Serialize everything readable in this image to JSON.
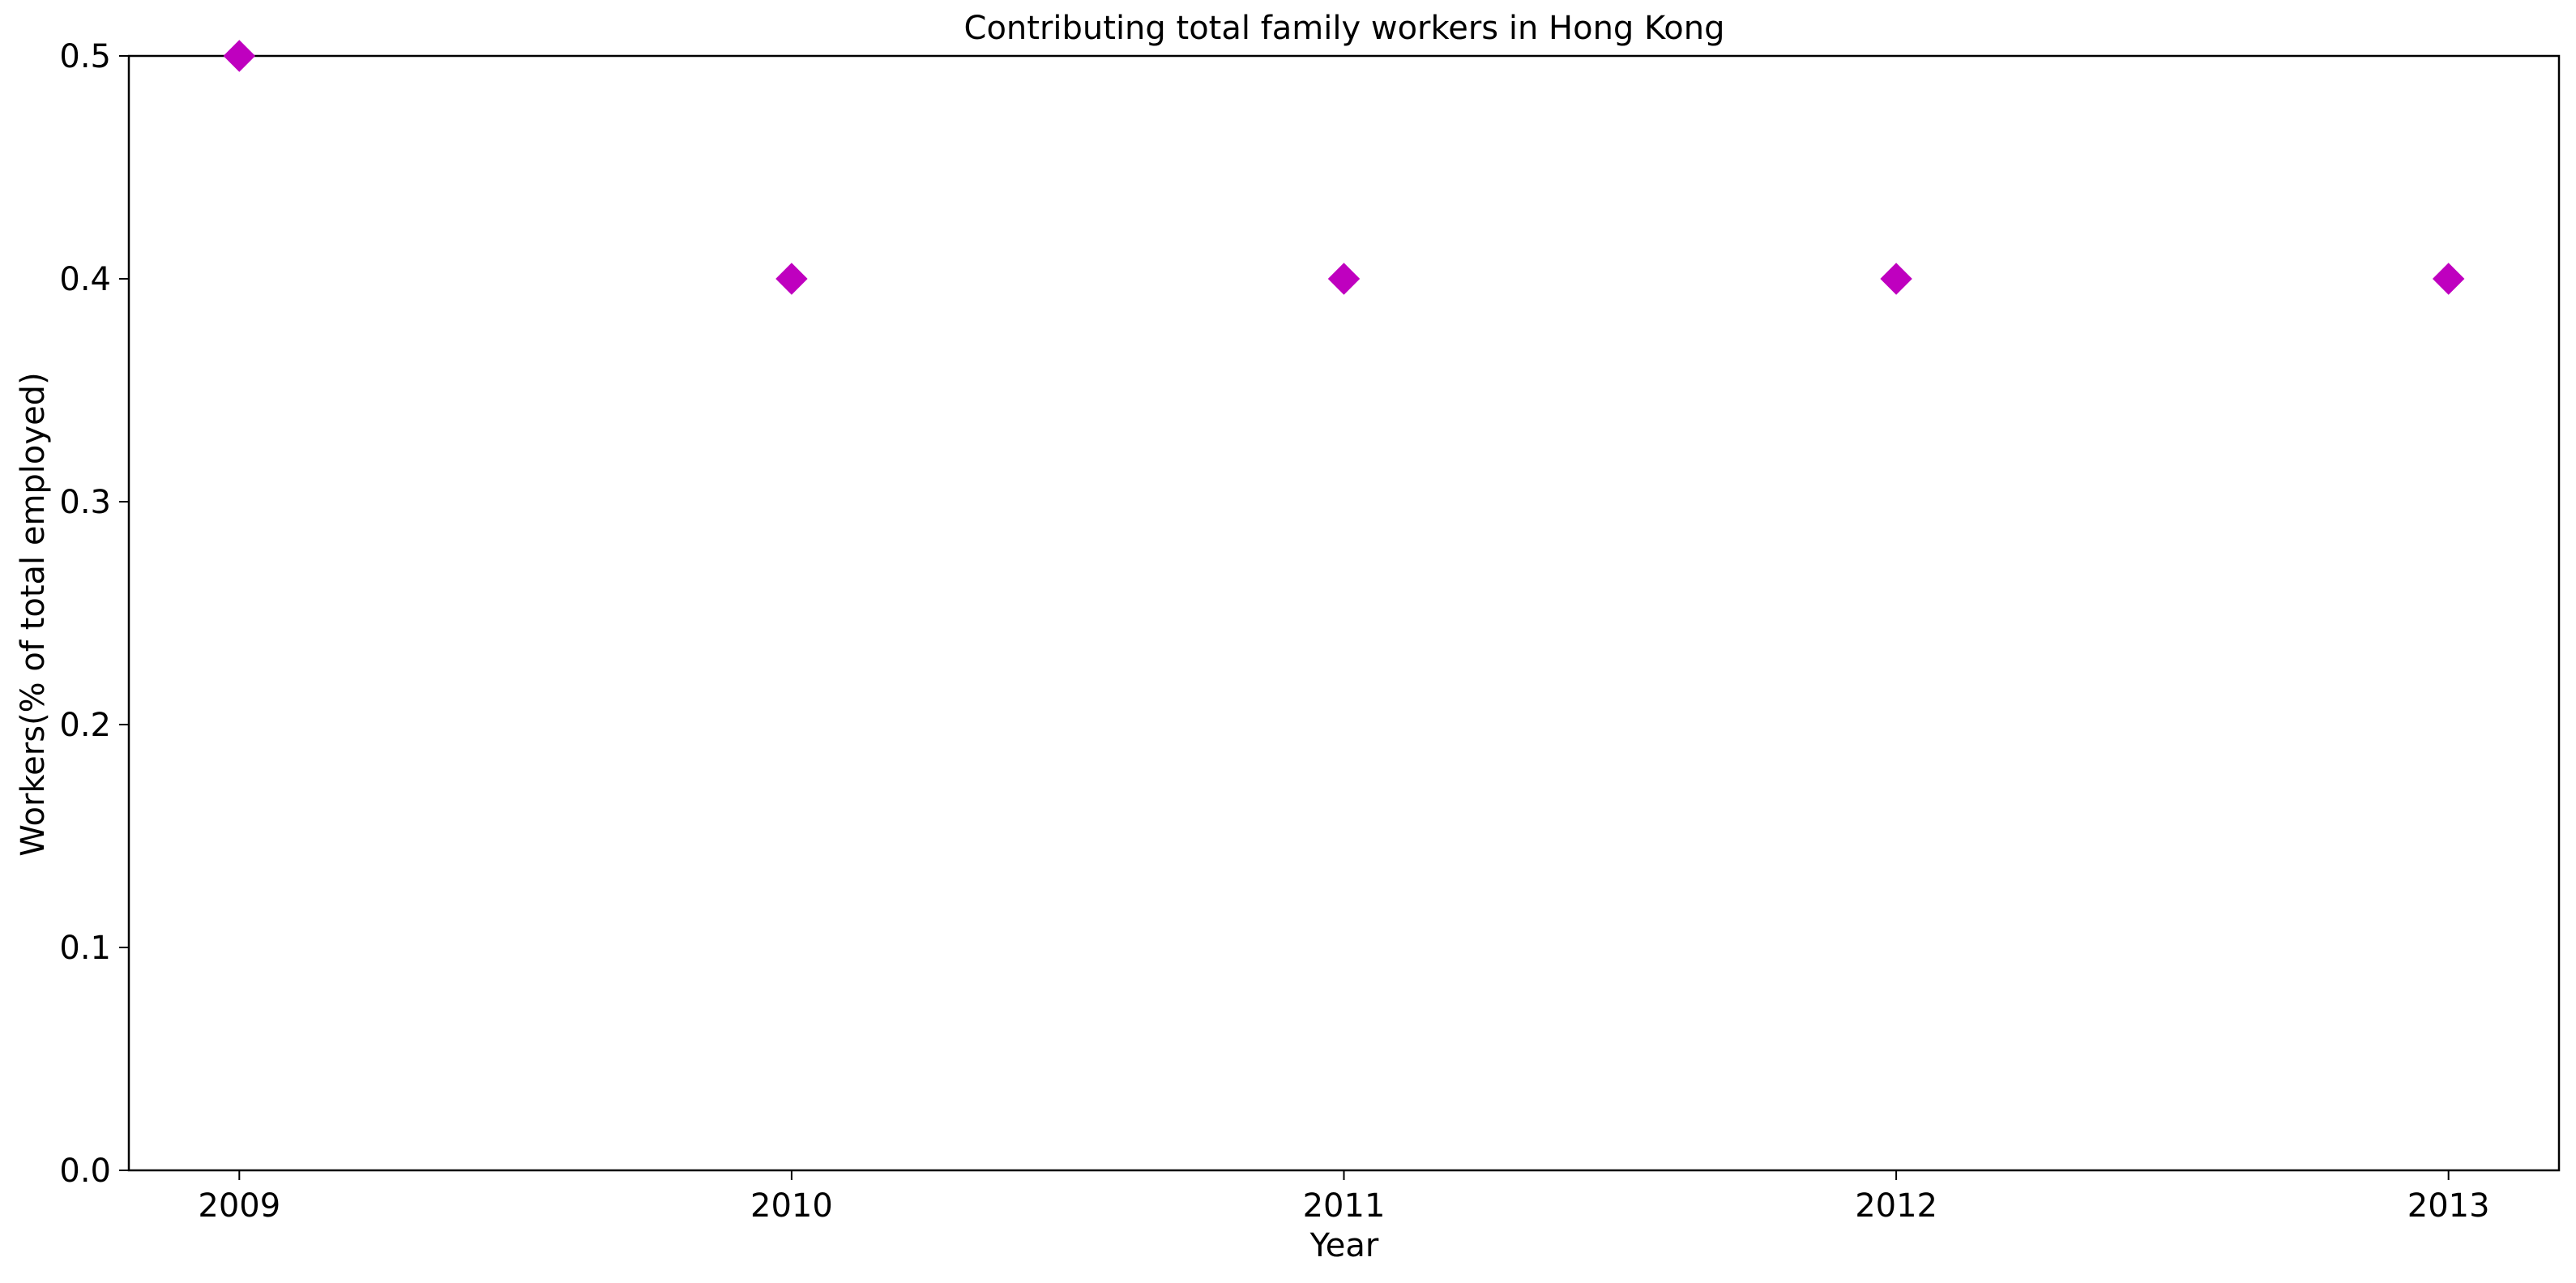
{
  "chart_data": {
    "type": "scatter",
    "title": "Contributing total family workers in Hong Kong",
    "xlabel": "Year",
    "ylabel": "Workers(% of total employed)",
    "x": [
      2009,
      2010,
      2011,
      2012,
      2013
    ],
    "series": [
      {
        "values": [
          0.5,
          0.4,
          0.4,
          0.4,
          0.4
        ],
        "color": "#bf00bf",
        "marker": "diamond"
      }
    ],
    "xlim": [
      2008.8,
      2013.2
    ],
    "ylim": [
      0.0,
      0.5
    ],
    "xticks": [
      "2009",
      "2010",
      "2011",
      "2012",
      "2013"
    ],
    "yticks": [
      "0.0",
      "0.1",
      "0.2",
      "0.3",
      "0.4",
      "0.5"
    ],
    "grid": false,
    "legend": "none"
  }
}
